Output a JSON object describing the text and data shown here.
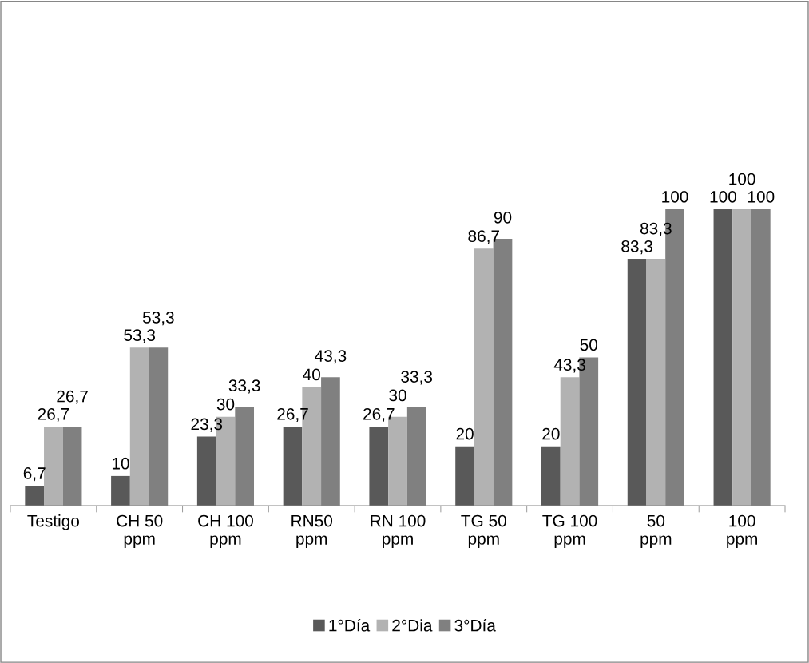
{
  "chart_data": {
    "type": "bar",
    "categories": [
      "Testigo",
      "CH 50\nppm",
      "CH 100\nppm",
      "RN50\nppm",
      "RN 100\nppm",
      "TG 50\nppm",
      "TG 100\nppm",
      "50\nppm",
      "100\nppm"
    ],
    "series": [
      {
        "name": "1°Día",
        "color": "#595959",
        "values": [
          6.7,
          10,
          23.3,
          26.7,
          26.7,
          20,
          20,
          83.3,
          100
        ],
        "value_labels": [
          "6,7",
          "10",
          "23,3",
          "26,7",
          "26,7",
          "20",
          "20",
          "83,3",
          "100"
        ]
      },
      {
        "name": "2°Dia",
        "color": "#b2b2b2",
        "values": [
          26.7,
          53.3,
          30,
          40,
          30,
          86.7,
          43.3,
          83.3,
          100
        ],
        "value_labels": [
          "26,7",
          "53,3",
          "30",
          "40",
          "30",
          "86,7",
          "43,3",
          "83,3",
          "100"
        ]
      },
      {
        "name": "3°Día",
        "color": "#808080",
        "values": [
          26.7,
          53.3,
          33.3,
          43.3,
          33.3,
          90,
          50,
          100,
          100
        ],
        "value_labels": [
          "26,7",
          "53,3",
          "33,3",
          "43,3",
          "33,3",
          "90",
          "50",
          "100",
          "100"
        ]
      }
    ],
    "tick_labels": "x",
    "legend": "bottom",
    "grid": false
  }
}
